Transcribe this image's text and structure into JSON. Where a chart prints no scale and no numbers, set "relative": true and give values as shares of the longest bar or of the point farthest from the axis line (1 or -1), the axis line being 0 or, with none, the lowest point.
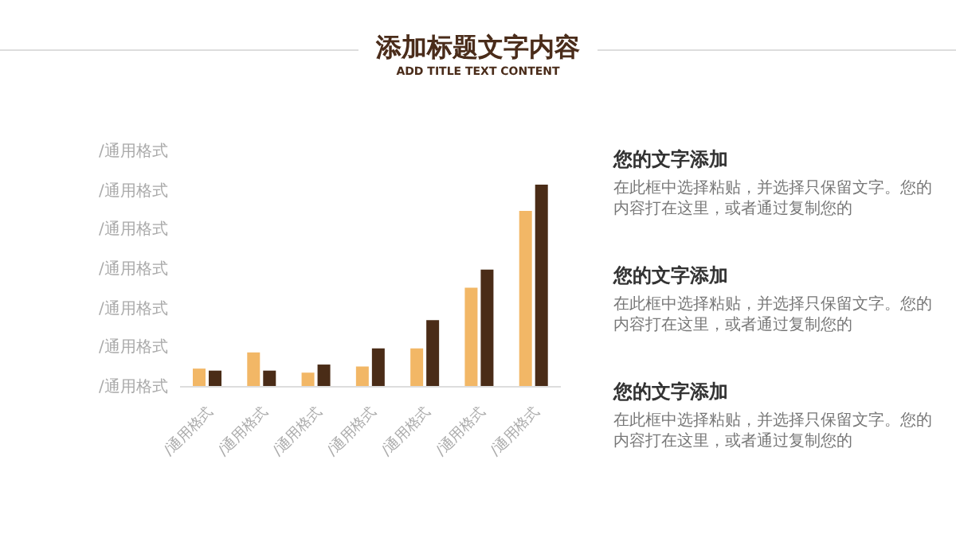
{
  "chart_data": [
    {
      "type": "bar",
      "title": "添加标题文字内容",
      "subtitle": "ADD TITLE TEXT CONTENT",
      "relative": true,
      "categories": [
        "/通用格式",
        "/通用格式",
        "/通用格式",
        "/通用格式",
        "/通用格式",
        "/通用格式",
        "/通用格式"
      ],
      "series": [
        {
          "color": "#f2b766",
          "values": [
            0.09,
            0.17,
            0.07,
            0.1,
            0.19,
            0.49,
            0.87
          ]
        },
        {
          "color": "#4a2c17",
          "values": [
            0.08,
            0.08,
            0.11,
            0.19,
            0.33,
            0.58,
            1
          ]
        }
      ],
      "annotations": [
        "/通用格式",
        "/通用格式",
        "/通用格式",
        "/通用格式",
        "/通用格式",
        "/通用格式",
        "/通用格式"
      ]
    },
    {
      "type": "other",
      "annotations": [
        "您的文字添加",
        "在此框中选择粘贴，并选择只保留文字。您的内容打在这里，或者通过复制您的",
        "您的文字添加",
        "在此框中选择粘贴，并选择只保留文字。您的内容打在这里，或者通过复制您的",
        "您的文字添加",
        "在此框中选择粘贴，并选择只保留文字。您的内容打在这里，或者通过复制您的"
      ]
    }
  ]
}
